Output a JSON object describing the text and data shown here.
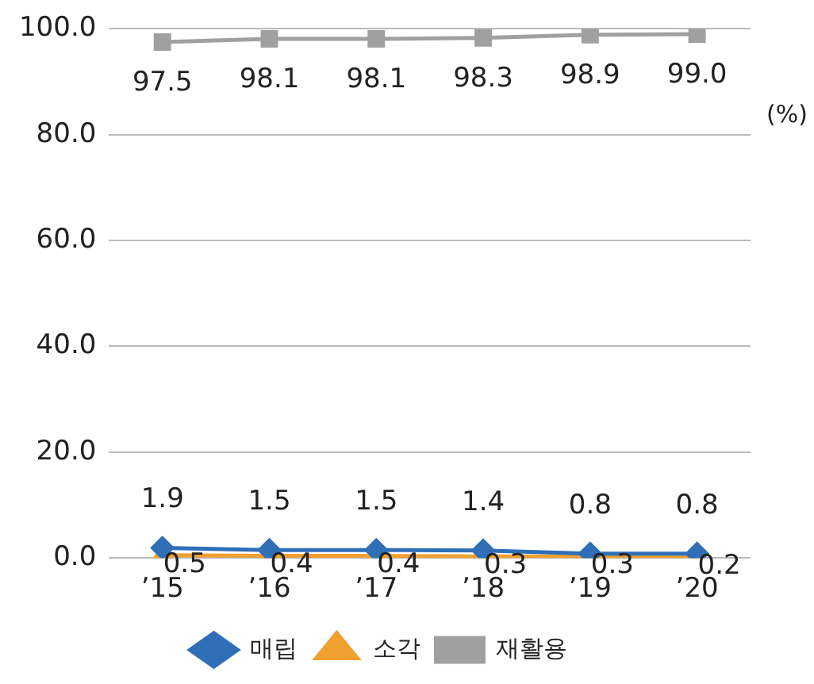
{
  "chart_data": {
    "type": "line",
    "categories": [
      "’15",
      "’16",
      "’17",
      "’18",
      "’19",
      "’20"
    ],
    "series": [
      {
        "name": "매립",
        "color": "#2f6fb8",
        "marker": "diamond",
        "values": [
          1.9,
          1.5,
          1.5,
          1.4,
          0.8,
          0.8
        ],
        "value_labels": [
          "1.9",
          "1.5",
          "1.5",
          "1.4",
          "0.8",
          "0.8"
        ]
      },
      {
        "name": "소각",
        "color": "#f0a030",
        "marker": "triangle",
        "values": [
          0.5,
          0.4,
          0.4,
          0.3,
          0.3,
          0.2
        ],
        "value_labels": [
          "0.5",
          "0.4",
          "0.4",
          "0.3",
          "0.3",
          "0.2"
        ]
      },
      {
        "name": "재활용",
        "color": "#a0a0a0",
        "marker": "square",
        "values": [
          97.5,
          98.1,
          98.1,
          98.3,
          98.9,
          99.0
        ],
        "value_labels": [
          "97.5",
          "98.1",
          "98.1",
          "98.3",
          "98.9",
          "99.0"
        ]
      }
    ],
    "ylim": [
      0,
      100
    ],
    "yticks": [
      {
        "value": 0,
        "label": "0.0"
      },
      {
        "value": 20,
        "label": "20.0"
      },
      {
        "value": 40,
        "label": "40.0"
      },
      {
        "value": 60,
        "label": "60.0"
      },
      {
        "value": 80,
        "label": "80.0"
      },
      {
        "value": 100,
        "label": "100.0"
      }
    ],
    "grid": "y",
    "legend": "bottom",
    "line_style": "solid",
    "annotations": [
      "(%)"
    ]
  }
}
